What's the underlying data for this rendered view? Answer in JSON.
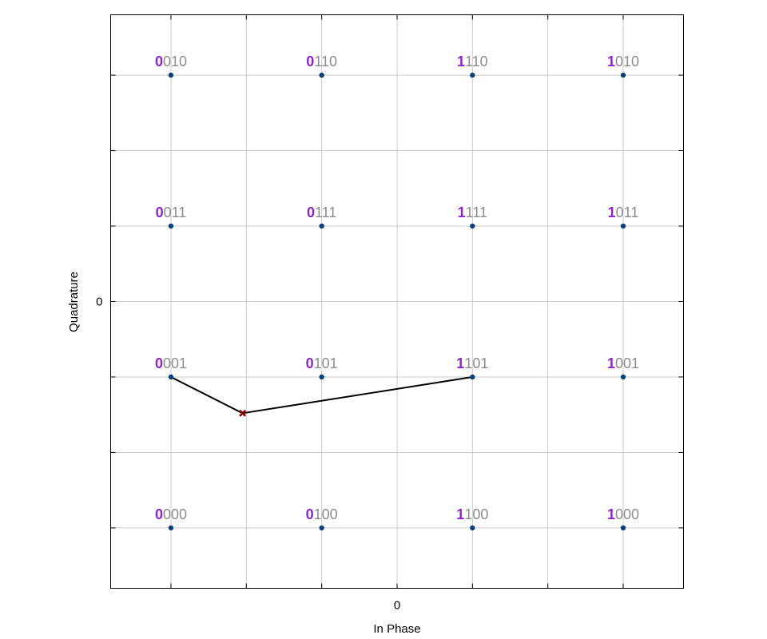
{
  "chart_data": {
    "type": "scatter",
    "xlabel": "In Phase",
    "ylabel": "Quadrature",
    "xlim": [
      -3.8,
      3.8
    ],
    "ylim": [
      -3.8,
      3.8
    ],
    "x_ticks": [
      -3,
      -2,
      -1,
      0,
      1,
      2,
      3
    ],
    "y_ticks": [
      -3,
      -2,
      -1,
      0,
      1,
      2,
      3
    ],
    "x_tick_labels": [
      {
        "value": 0,
        "label": "0"
      }
    ],
    "y_tick_labels": [
      {
        "value": 0,
        "label": "0"
      }
    ],
    "grid": true,
    "constellation": [
      {
        "x": -3,
        "y": 3,
        "label": "0010"
      },
      {
        "x": -1,
        "y": 3,
        "label": "0110"
      },
      {
        "x": 1,
        "y": 3,
        "label": "1110"
      },
      {
        "x": 3,
        "y": 3,
        "label": "1010"
      },
      {
        "x": -3,
        "y": 1,
        "label": "0011"
      },
      {
        "x": -1,
        "y": 1,
        "label": "0111"
      },
      {
        "x": 1,
        "y": 1,
        "label": "1111"
      },
      {
        "x": 3,
        "y": 1,
        "label": "1011"
      },
      {
        "x": -3,
        "y": -1,
        "label": "0001"
      },
      {
        "x": -1,
        "y": -1,
        "label": "0101"
      },
      {
        "x": 1,
        "y": -1,
        "label": "1101"
      },
      {
        "x": 3,
        "y": -1,
        "label": "1001"
      },
      {
        "x": -3,
        "y": -3,
        "label": "0000"
      },
      {
        "x": -1,
        "y": -3,
        "label": "0100"
      },
      {
        "x": 1,
        "y": -3,
        "label": "1100"
      },
      {
        "x": 3,
        "y": -3,
        "label": "1000"
      }
    ],
    "received_point": {
      "x": -2.05,
      "y": -1.48
    },
    "distance_lines_to": [
      {
        "x": -3,
        "y": -1
      },
      {
        "x": 1,
        "y": -1
      }
    ],
    "colors": {
      "point": "#0b3f7a",
      "received": "#8b0000",
      "line": "#000000",
      "grid": "#cccccc",
      "first_bit": "#8e24cc",
      "rest_bits": "#8c8c8c"
    }
  }
}
